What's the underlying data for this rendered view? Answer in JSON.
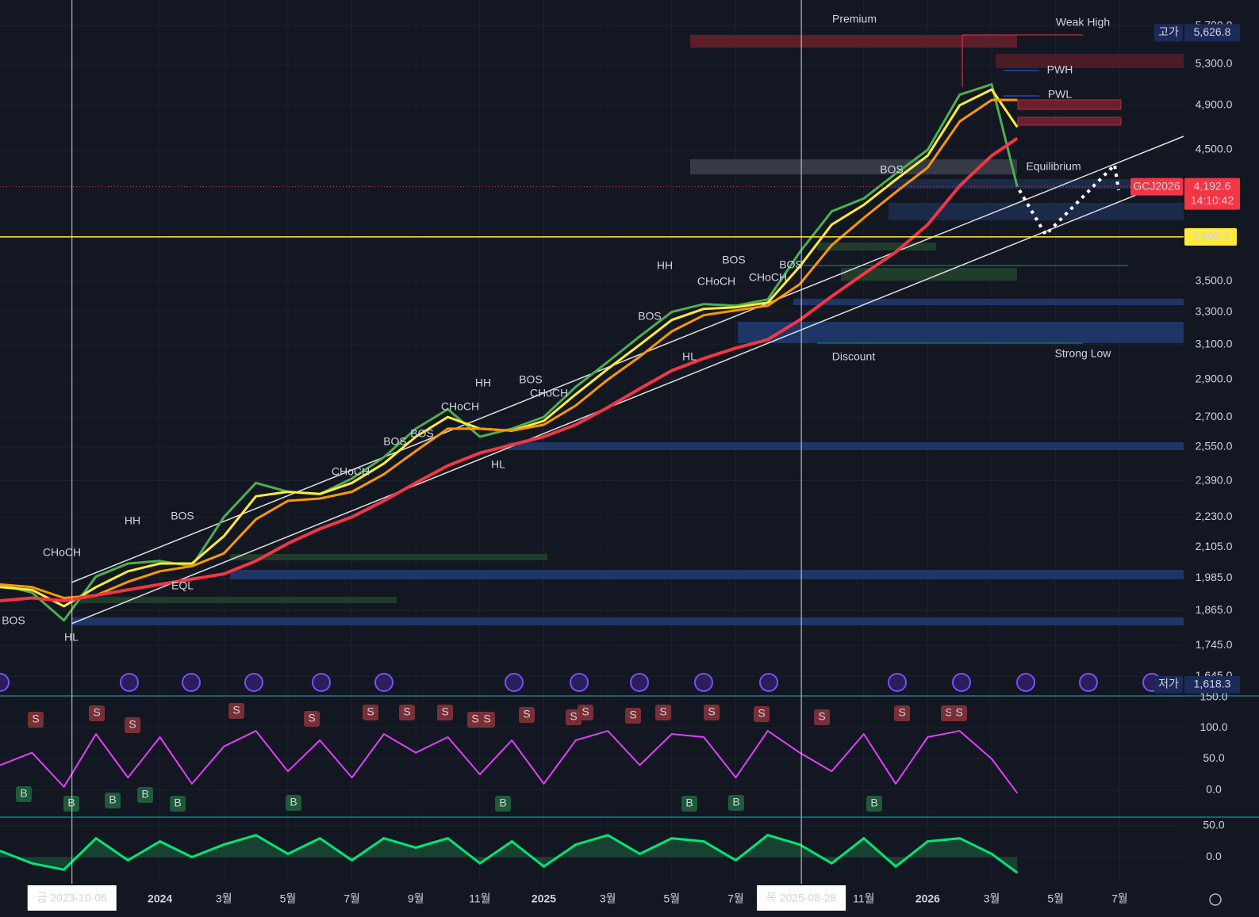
{
  "chart_data": [
    {
      "type": "line",
      "symbol": "GCJ2026",
      "log_scale": true,
      "grid": true,
      "x": [
        -2,
        -1,
        0,
        1,
        2,
        3,
        4,
        5,
        6,
        7,
        8,
        9,
        10,
        11,
        12,
        13,
        14,
        15,
        16,
        17,
        18,
        19,
        20,
        21,
        22,
        23,
        24,
        25,
        26,
        27,
        28,
        29,
        29.8
      ],
      "xlim": [
        -2,
        35
      ],
      "xticks": [
        {
          "value": 3,
          "label": "2024"
        },
        {
          "value": 5,
          "label": "3월"
        },
        {
          "value": 7,
          "label": "5월"
        },
        {
          "value": 9,
          "label": "7월"
        },
        {
          "value": 11,
          "label": "9월"
        },
        {
          "value": 13,
          "label": "11월"
        },
        {
          "value": 15,
          "label": "2025"
        },
        {
          "value": 17,
          "label": "3월"
        },
        {
          "value": 19,
          "label": "5월"
        },
        {
          "value": 21,
          "label": "7월"
        },
        {
          "value": 25,
          "label": "11월"
        },
        {
          "value": 27,
          "label": "2026"
        },
        {
          "value": 29,
          "label": "3월"
        },
        {
          "value": 31,
          "label": "5월"
        },
        {
          "value": 33,
          "label": "7월"
        }
      ],
      "ylim": [
        1584,
        5992
      ],
      "yticks": [
        {
          "value": 5700,
          "label": "5,700.0"
        },
        {
          "value": 5300,
          "label": "5,300.0"
        },
        {
          "value": 4900,
          "label": "4,900.0"
        },
        {
          "value": 4500,
          "label": "4,500.0"
        },
        {
          "value": 3500,
          "label": "3,500.0"
        },
        {
          "value": 3300,
          "label": "3,300.0"
        },
        {
          "value": 3100,
          "label": "3,100.0"
        },
        {
          "value": 2900,
          "label": "2,900.0"
        },
        {
          "value": 2700,
          "label": "2,700.0"
        },
        {
          "value": 2550,
          "label": "2,550.0"
        },
        {
          "value": 2390,
          "label": "2,390.0"
        },
        {
          "value": 2230,
          "label": "2,230.0"
        },
        {
          "value": 2105,
          "label": "2,105.0"
        },
        {
          "value": 1985,
          "label": "1,985.0"
        },
        {
          "value": 1865,
          "label": "1,865.0"
        },
        {
          "value": 1745,
          "label": "1,745.0"
        },
        {
          "value": 1645,
          "label": "1,645.0"
        }
      ],
      "series": [
        {
          "color": "#4caf50",
          "values": [
            1960,
            1930,
            1830,
            1990,
            2040,
            2050,
            2030,
            2230,
            2380,
            2340,
            2330,
            2400,
            2500,
            2640,
            2740,
            2600,
            2640,
            2700,
            2860,
            3000,
            3150,
            3300,
            3350,
            3340,
            3380,
            3700,
            4000,
            4100,
            4300,
            4500,
            5000,
            5100,
            4192.6
          ]
        },
        {
          "color": "#ffeb3b",
          "values": [
            1950,
            1940,
            1880,
            1950,
            2010,
            2040,
            2040,
            2150,
            2320,
            2340,
            2330,
            2380,
            2470,
            2600,
            2700,
            2640,
            2630,
            2680,
            2820,
            2960,
            3100,
            3250,
            3320,
            3330,
            3360,
            3600,
            3900,
            4050,
            4250,
            4450,
            4900,
            5050,
            4700
          ]
        },
        {
          "color": "#ff9800",
          "values": [
            1960,
            1950,
            1910,
            1920,
            1970,
            2010,
            2030,
            2080,
            2220,
            2300,
            2310,
            2340,
            2420,
            2530,
            2640,
            2640,
            2630,
            2660,
            2760,
            2900,
            3030,
            3180,
            3280,
            3310,
            3340,
            3480,
            3750,
            3950,
            4150,
            4350,
            4750,
            4950,
            4950
          ]
        },
        {
          "color": "#f23645",
          "values": [
            1900,
            1910,
            1900,
            1920,
            1940,
            1960,
            1980,
            2000,
            2050,
            2120,
            2180,
            2230,
            2300,
            2380,
            2460,
            2520,
            2560,
            2600,
            2660,
            2750,
            2850,
            2950,
            3020,
            3080,
            3130,
            3250,
            3400,
            3550,
            3700,
            3900,
            4200,
            4450,
            4600
          ]
        }
      ],
      "high": {
        "name": "고가",
        "value": 5626.8,
        "label": "5,626.8"
      },
      "low": {
        "name": "저가",
        "value": 1618.3,
        "label": "1,618.3"
      },
      "last_price": {
        "symbol": "GCJ2026",
        "value": 4192.6,
        "label": "4,192.6",
        "countdown": "14:10:42"
      },
      "crosshair_price": {
        "value": 3809.3,
        "label": "3,809.3"
      },
      "crosshair_dates": [
        {
          "value": 0.25,
          "label": "금 2023-10-06"
        },
        {
          "value": 23.05,
          "label": "목 2025-08-28"
        }
      ],
      "annotations": [
        "Premium",
        "Weak High",
        "PWH",
        "PWL",
        "Equilibrium",
        "Discount",
        "Strong Low",
        "HH",
        "BOS",
        "HH",
        "BOS",
        "HH",
        "BOS",
        "CHoCH",
        "BOS",
        "HL",
        "HL",
        "HL",
        "CHoCH",
        "CHoCH",
        "BOS",
        "BOS",
        "CHoCH",
        "CHoCH",
        "BOS",
        "BOS",
        "CHoCH",
        "BOS",
        "EQL"
      ]
    },
    {
      "type": "line",
      "ylim": [
        -43.6,
        151.3
      ],
      "yticks": [
        {
          "value": 150,
          "label": "150.0"
        },
        {
          "value": 100,
          "label": "100.0"
        },
        {
          "value": 50,
          "label": "50.0"
        },
        {
          "value": 0,
          "label": "0.0"
        }
      ],
      "x": [
        -2,
        -1,
        0,
        1,
        2,
        3,
        4,
        5,
        6,
        7,
        8,
        9,
        10,
        11,
        12,
        13,
        14,
        15,
        16,
        17,
        18,
        19,
        20,
        21,
        22,
        23,
        24,
        25,
        26,
        27,
        28,
        29,
        29.8
      ],
      "series": [
        {
          "color": "#e040fb",
          "values": [
            40,
            60,
            5,
            90,
            20,
            85,
            10,
            70,
            95,
            30,
            80,
            20,
            90,
            60,
            85,
            25,
            80,
            10,
            80,
            95,
            40,
            90,
            85,
            20,
            95,
            60,
            30,
            90,
            10,
            85,
            95,
            50,
            -5
          ]
        }
      ],
      "sell_label": "S",
      "buy_label": "B"
    },
    {
      "type": "area",
      "ylim": [
        -42.5,
        63.75
      ],
      "yticks": [
        {
          "value": 50,
          "label": "50.0"
        },
        {
          "value": 0,
          "label": "0.0"
        }
      ],
      "x": [
        -2,
        -1,
        0,
        1,
        2,
        3,
        4,
        5,
        6,
        7,
        8,
        9,
        10,
        11,
        12,
        13,
        14,
        15,
        16,
        17,
        18,
        19,
        20,
        21,
        22,
        23,
        24,
        25,
        26,
        27,
        28,
        29,
        29.8
      ],
      "series": [
        {
          "color": "#00e676",
          "values": [
            10,
            -10,
            -20,
            30,
            -5,
            25,
            0,
            20,
            35,
            5,
            30,
            -5,
            30,
            15,
            30,
            -10,
            25,
            -15,
            20,
            35,
            5,
            30,
            25,
            -5,
            35,
            20,
            -10,
            30,
            -15,
            25,
            30,
            5,
            -25
          ]
        }
      ]
    }
  ]
}
